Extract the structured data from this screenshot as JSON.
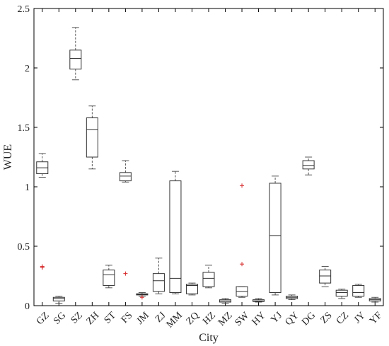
{
  "chart_data": {
    "type": "box",
    "title": "",
    "xlabel": "City",
    "ylabel": "WUE",
    "ylim": [
      0,
      2.5
    ],
    "yticks": [
      0,
      0.5,
      1,
      1.5,
      2,
      2.5
    ],
    "ytick_labels": [
      "0",
      "0.5",
      "1",
      "1.5",
      "2",
      "2.5"
    ],
    "categories": [
      "GZ",
      "SG",
      "SZ",
      "ZH",
      "ST",
      "FS",
      "JM",
      "ZJ",
      "MM",
      "ZQ",
      "HZ",
      "MZ",
      "SW",
      "HY",
      "YJ",
      "QY",
      "DG",
      "ZS",
      "CZ",
      "JY",
      "YF"
    ],
    "boxes": [
      {
        "min": 1.08,
        "q1": 1.11,
        "median": 1.16,
        "q3": 1.21,
        "max": 1.28,
        "outliers": [
          0.32,
          0.33
        ]
      },
      {
        "min": 0.02,
        "q1": 0.04,
        "median": 0.06,
        "q3": 0.07,
        "max": 0.08,
        "outliers": []
      },
      {
        "min": 1.9,
        "q1": 1.99,
        "median": 2.08,
        "q3": 2.15,
        "max": 2.34,
        "outliers": []
      },
      {
        "min": 1.15,
        "q1": 1.25,
        "median": 1.48,
        "q3": 1.58,
        "max": 1.68,
        "outliers": []
      },
      {
        "min": 0.15,
        "q1": 0.17,
        "median": 0.26,
        "q3": 0.3,
        "max": 0.34,
        "outliers": []
      },
      {
        "min": 1.04,
        "q1": 1.05,
        "median": 1.09,
        "q3": 1.12,
        "max": 1.22,
        "outliers": [
          0.27
        ]
      },
      {
        "min": 0.08,
        "q1": 0.09,
        "median": 0.095,
        "q3": 0.1,
        "max": 0.11,
        "outliers": [
          0.07
        ]
      },
      {
        "min": 0.1,
        "q1": 0.12,
        "median": 0.21,
        "q3": 0.27,
        "max": 0.4,
        "outliers": []
      },
      {
        "min": 0.1,
        "q1": 0.11,
        "median": 0.23,
        "q3": 1.05,
        "max": 1.13,
        "outliers": []
      },
      {
        "min": 0.09,
        "q1": 0.1,
        "median": 0.17,
        "q3": 0.18,
        "max": 0.19,
        "outliers": []
      },
      {
        "min": 0.15,
        "q1": 0.16,
        "median": 0.23,
        "q3": 0.28,
        "max": 0.34,
        "outliers": []
      },
      {
        "min": 0.02,
        "q1": 0.03,
        "median": 0.04,
        "q3": 0.05,
        "max": 0.06,
        "outliers": []
      },
      {
        "min": 0.07,
        "q1": 0.08,
        "median": 0.12,
        "q3": 0.16,
        "max": 0.16,
        "outliers": [
          0.35,
          1.01
        ]
      },
      {
        "min": 0.03,
        "q1": 0.035,
        "median": 0.04,
        "q3": 0.05,
        "max": 0.06,
        "outliers": []
      },
      {
        "min": 0.09,
        "q1": 0.11,
        "median": 0.59,
        "q3": 1.03,
        "max": 1.09,
        "outliers": []
      },
      {
        "min": 0.05,
        "q1": 0.06,
        "median": 0.07,
        "q3": 0.08,
        "max": 0.09,
        "outliers": []
      },
      {
        "min": 1.1,
        "q1": 1.15,
        "median": 1.18,
        "q3": 1.22,
        "max": 1.25,
        "outliers": []
      },
      {
        "min": 0.16,
        "q1": 0.19,
        "median": 0.25,
        "q3": 0.3,
        "max": 0.33,
        "outliers": []
      },
      {
        "min": 0.06,
        "q1": 0.08,
        "median": 0.11,
        "q3": 0.13,
        "max": 0.14,
        "outliers": []
      },
      {
        "min": 0.07,
        "q1": 0.08,
        "median": 0.11,
        "q3": 0.17,
        "max": 0.18,
        "outliers": []
      },
      {
        "min": 0.03,
        "q1": 0.04,
        "median": 0.05,
        "q3": 0.06,
        "max": 0.07,
        "outliers": []
      }
    ],
    "colors": {
      "box": "#333333",
      "whisker": "#444444",
      "outlier": "#d62728",
      "axis": "#000000"
    }
  }
}
